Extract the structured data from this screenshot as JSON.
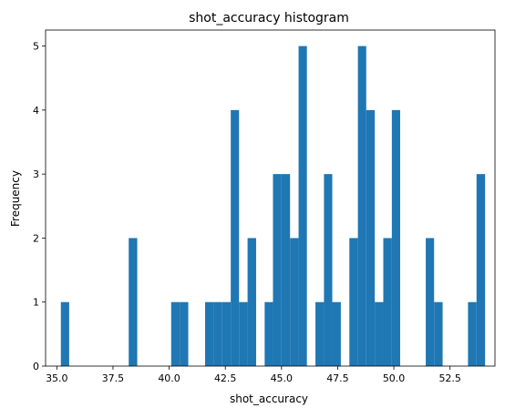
{
  "chart_data": {
    "type": "bar",
    "title": "shot_accuracy histogram",
    "xlabel": "shot_accuracy",
    "ylabel": "Frequency",
    "xlim": [
      34.5,
      54.5
    ],
    "ylim": [
      0,
      5.25
    ],
    "xticks": [
      35.0,
      37.5,
      40.0,
      42.5,
      45.0,
      47.5,
      50.0,
      52.5
    ],
    "xtick_labels": [
      "35.0",
      "37.5",
      "40.0",
      "42.5",
      "45.0",
      "47.5",
      "50.0",
      "52.5"
    ],
    "yticks": [
      0,
      1,
      2,
      3,
      4,
      5
    ],
    "ytick_labels": [
      "0",
      "1",
      "2",
      "3",
      "4",
      "5"
    ],
    "bar_color": "#1f77b4",
    "bins": [
      {
        "x0": 35.18,
        "x1": 35.55,
        "value": 1
      },
      {
        "x0": 38.2,
        "x1": 38.58,
        "value": 2
      },
      {
        "x0": 40.09,
        "x1": 40.47,
        "value": 1
      },
      {
        "x0": 40.47,
        "x1": 40.85,
        "value": 1
      },
      {
        "x0": 41.6,
        "x1": 41.98,
        "value": 1
      },
      {
        "x0": 41.98,
        "x1": 42.36,
        "value": 1
      },
      {
        "x0": 42.36,
        "x1": 42.74,
        "value": 1
      },
      {
        "x0": 42.74,
        "x1": 43.11,
        "value": 4
      },
      {
        "x0": 43.11,
        "x1": 43.49,
        "value": 1
      },
      {
        "x0": 43.49,
        "x1": 43.87,
        "value": 2
      },
      {
        "x0": 44.25,
        "x1": 44.62,
        "value": 1
      },
      {
        "x0": 44.62,
        "x1": 45.0,
        "value": 3
      },
      {
        "x0": 45.0,
        "x1": 45.38,
        "value": 3
      },
      {
        "x0": 45.38,
        "x1": 45.76,
        "value": 2
      },
      {
        "x0": 45.76,
        "x1": 46.13,
        "value": 5
      },
      {
        "x0": 46.51,
        "x1": 46.89,
        "value": 1
      },
      {
        "x0": 46.89,
        "x1": 47.26,
        "value": 3
      },
      {
        "x0": 47.26,
        "x1": 47.64,
        "value": 1
      },
      {
        "x0": 48.02,
        "x1": 48.4,
        "value": 2
      },
      {
        "x0": 48.4,
        "x1": 48.77,
        "value": 5
      },
      {
        "x0": 48.77,
        "x1": 49.15,
        "value": 4
      },
      {
        "x0": 49.15,
        "x1": 49.53,
        "value": 1
      },
      {
        "x0": 49.53,
        "x1": 49.91,
        "value": 2
      },
      {
        "x0": 49.91,
        "x1": 50.28,
        "value": 4
      },
      {
        "x0": 51.42,
        "x1": 51.79,
        "value": 2
      },
      {
        "x0": 51.79,
        "x1": 52.17,
        "value": 1
      },
      {
        "x0": 53.3,
        "x1": 53.68,
        "value": 1
      },
      {
        "x0": 53.68,
        "x1": 54.06,
        "value": 3
      }
    ]
  }
}
